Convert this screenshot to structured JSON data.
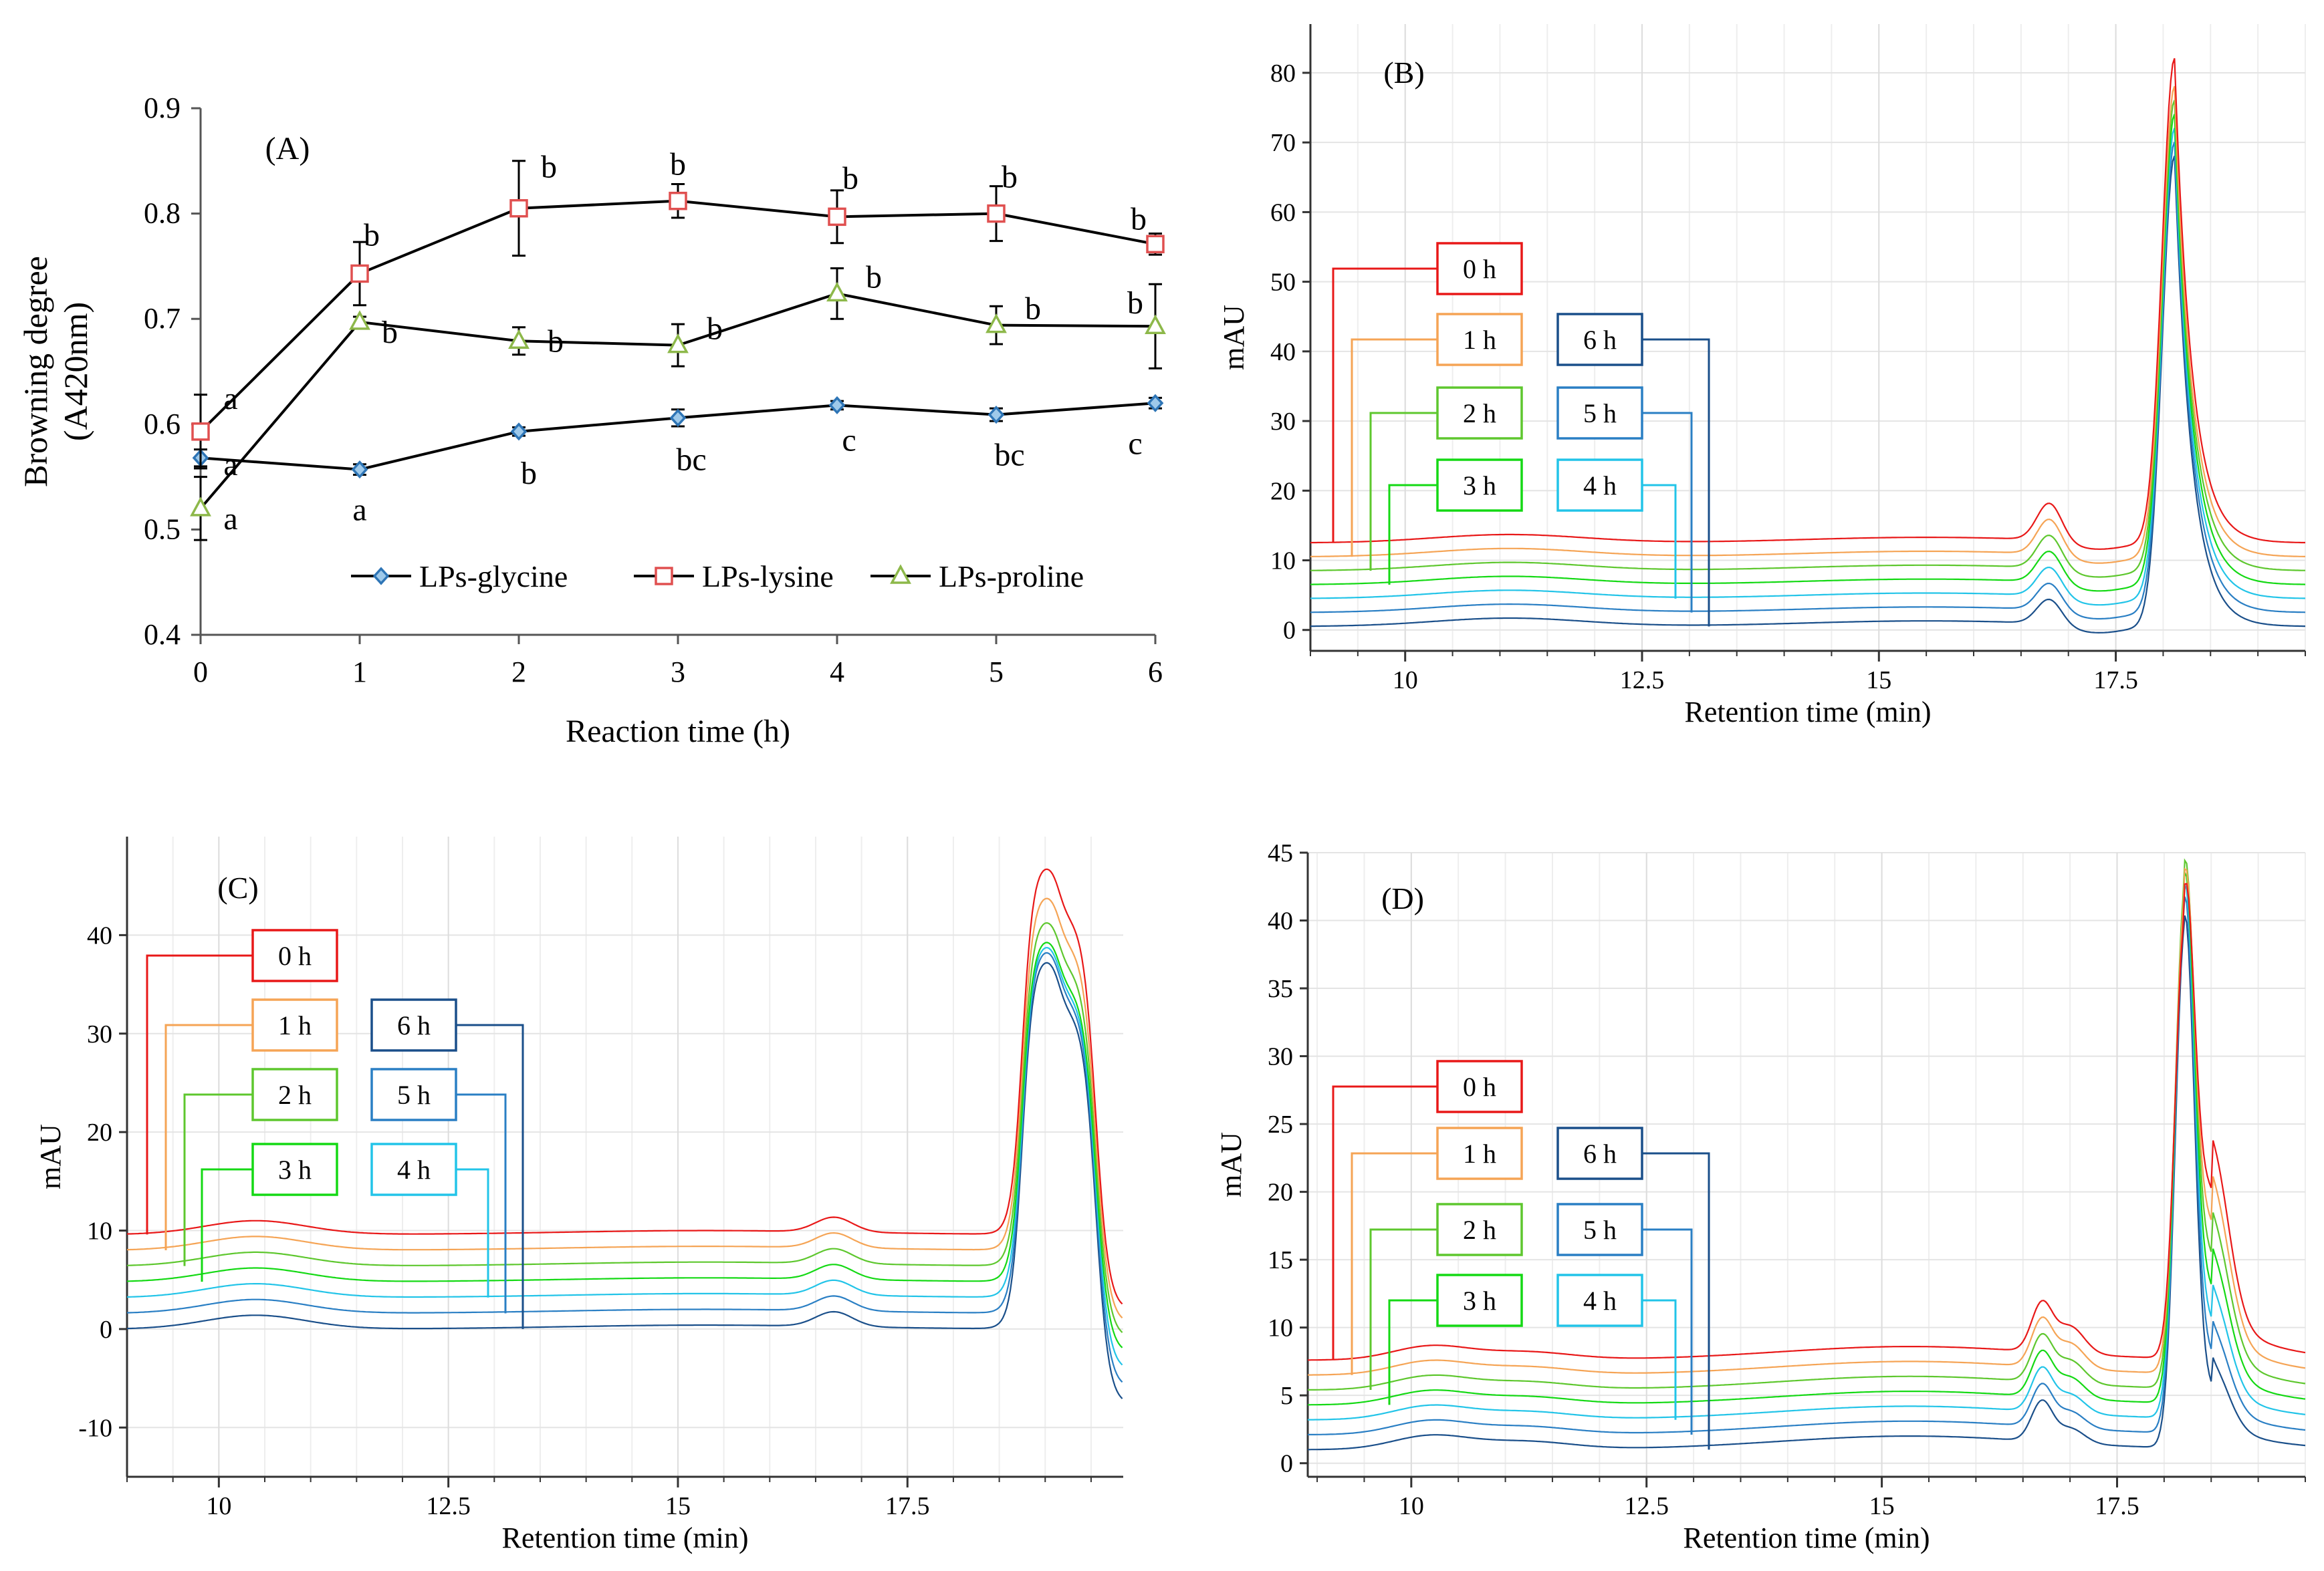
{
  "chart_data": [
    {
      "panel": "(A)",
      "type": "line",
      "xlabel": "Reaction time (h)",
      "ylabel_lines": [
        "Browning degree",
        "(A420nm)"
      ],
      "x": [
        0,
        1,
        2,
        3,
        4,
        5,
        6
      ],
      "xticks": [
        "0",
        "1",
        "2",
        "3",
        "4",
        "5",
        "6"
      ],
      "xlim": [
        0,
        6
      ],
      "ylim": [
        0.4,
        0.9
      ],
      "yticks": [
        "0.4",
        "0.5",
        "0.6",
        "0.7",
        "0.8",
        "0.9"
      ],
      "grid": false,
      "legend_position": "bottom",
      "series": [
        {
          "name": "LPs-glycine",
          "marker": "diamond",
          "color": "#2e75b6",
          "values": [
            0.568,
            0.557,
            0.593,
            0.606,
            0.618,
            0.609,
            0.62
          ],
          "errors": [
            0.008,
            0.005,
            0.004,
            0.008,
            0.004,
            0.006,
            0.005
          ],
          "letters": [
            "a",
            "a",
            "b",
            "bc",
            "c",
            "bc",
            "c"
          ]
        },
        {
          "name": "LPs-lysine",
          "marker": "square",
          "color": "#e05050",
          "values": [
            0.593,
            0.743,
            0.805,
            0.812,
            0.797,
            0.8,
            0.771
          ],
          "errors": [
            0.035,
            0.03,
            0.045,
            0.016,
            0.025,
            0.026,
            0.01
          ],
          "letters": [
            "a",
            "b",
            "b",
            "b",
            "b",
            "b",
            "b"
          ]
        },
        {
          "name": "LPs-proline",
          "marker": "triangle",
          "color": "#8db84a",
          "values": [
            0.52,
            0.697,
            0.679,
            0.675,
            0.724,
            0.694,
            0.693
          ],
          "errors": [
            0.03,
            0.005,
            0.013,
            0.02,
            0.024,
            0.018,
            0.04
          ],
          "letters": [
            "a",
            "b",
            "b",
            "b",
            "b",
            "b",
            "b"
          ]
        }
      ]
    },
    {
      "panel": "(B)",
      "type": "line",
      "xlabel": "Retention time (min)",
      "ylabel": "mAU",
      "xlim": [
        9,
        19.5
      ],
      "xticks": [
        "10",
        "12.5",
        "15",
        "17.5"
      ],
      "ylim": [
        -3,
        87
      ],
      "yticks": [
        "0",
        "10",
        "20",
        "30",
        "40",
        "50",
        "60",
        "70",
        "80"
      ],
      "grid": true,
      "baseline_mAU": 0.5,
      "offset_step_mAU": 2.0,
      "peak_heights_mAU": [
        84,
        80,
        78,
        76,
        74,
        72,
        70
      ],
      "series": [
        {
          "name": "0 h",
          "color": "#e81818"
        },
        {
          "name": "1 h",
          "color": "#f5a455"
        },
        {
          "name": "2 h",
          "color": "#5ec72e"
        },
        {
          "name": "3 h",
          "color": "#14d914"
        },
        {
          "name": "4 h",
          "color": "#22c4e8"
        },
        {
          "name": "5 h",
          "color": "#2a7fc4"
        },
        {
          "name": "6 h",
          "color": "#1a4f8a"
        }
      ]
    },
    {
      "panel": "(C)",
      "type": "line",
      "xlabel": "Retention time (min)",
      "ylabel": "mAU",
      "xlim": [
        9,
        19.85
      ],
      "xticks": [
        "10",
        "12.5",
        "15",
        "17.5"
      ],
      "ylim": [
        -15,
        50
      ],
      "yticks": [
        "-10",
        "0",
        "10",
        "20",
        "30",
        "40"
      ],
      "grid": true,
      "baseline_mAU": 0,
      "offset_step_mAU": 1.6,
      "peak_heights_mAU": [
        47.5,
        44.5,
        42,
        40,
        39.5,
        39,
        38
      ],
      "series": [
        {
          "name": "0 h",
          "color": "#e81818"
        },
        {
          "name": "1 h",
          "color": "#f5a455"
        },
        {
          "name": "2 h",
          "color": "#5ec72e"
        },
        {
          "name": "3 h",
          "color": "#14d914"
        },
        {
          "name": "4 h",
          "color": "#22c4e8"
        },
        {
          "name": "5 h",
          "color": "#2a7fc4"
        },
        {
          "name": "6 h",
          "color": "#1a4f8a"
        }
      ]
    },
    {
      "panel": "(D)",
      "type": "line",
      "xlabel": "Retention time (min)",
      "ylabel": "mAU",
      "xlim": [
        8.9,
        19.5
      ],
      "xticks": [
        "10",
        "12.5",
        "15",
        "17.5"
      ],
      "ylim": [
        -1,
        45
      ],
      "yticks": [
        "0",
        "5",
        "10",
        "15",
        "20",
        "25",
        "30",
        "35",
        "40",
        "45"
      ],
      "grid": true,
      "baseline_mAU": 1.0,
      "offset_step_mAU": 1.1,
      "peak_heights_mAU": [
        41,
        42.5,
        43.5,
        43,
        42.5,
        42,
        41
      ],
      "series": [
        {
          "name": "0 h",
          "color": "#e81818"
        },
        {
          "name": "1 h",
          "color": "#f5a455"
        },
        {
          "name": "2 h",
          "color": "#5ec72e"
        },
        {
          "name": "3 h",
          "color": "#14d914"
        },
        {
          "name": "4 h",
          "color": "#22c4e8"
        },
        {
          "name": "5 h",
          "color": "#2a7fc4"
        },
        {
          "name": "6 h",
          "color": "#1a4f8a"
        }
      ]
    }
  ]
}
